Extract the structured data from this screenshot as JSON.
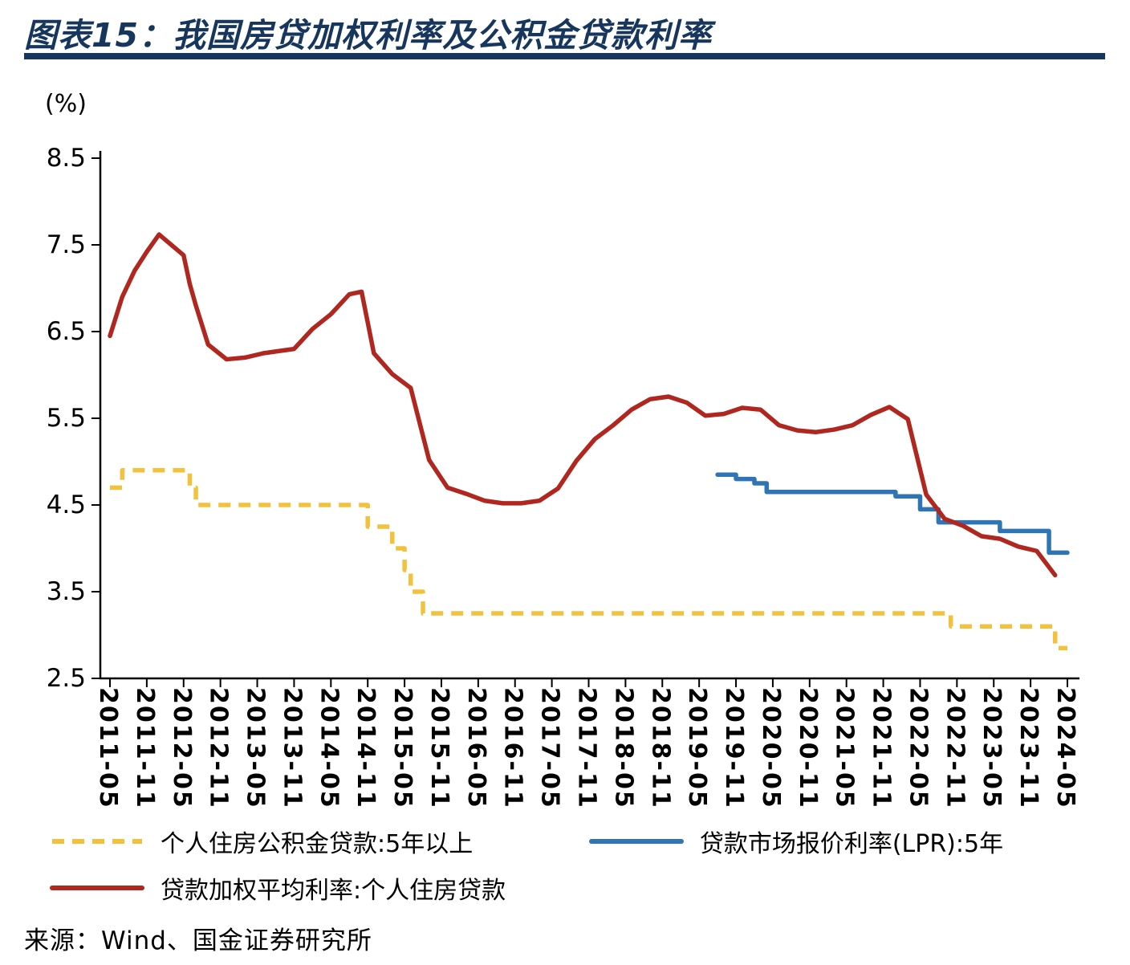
{
  "header": {
    "title": "图表15：我国房贷加权利率及公积金贷款利率"
  },
  "chart_data": {
    "type": "line",
    "title": "我国房贷加权利率及公积金贷款利率",
    "xlabel": "",
    "ylabel": "(%)",
    "unit_label": "(%)",
    "grid": false,
    "legend_position": "bottom",
    "ylim": [
      2.5,
      8.5
    ],
    "y_ticks": [
      8.5,
      7.5,
      6.5,
      5.5,
      4.5,
      3.5,
      2.5
    ],
    "x_tick_labels": [
      "2011-05",
      "2011-11",
      "2012-05",
      "2012-11",
      "2013-05",
      "2013-11",
      "2014-05",
      "2014-11",
      "2015-05",
      "2015-11",
      "2016-05",
      "2016-11",
      "2017-05",
      "2017-11",
      "2018-05",
      "2018-11",
      "2019-05",
      "2019-11",
      "2020-05",
      "2020-11",
      "2021-05",
      "2021-11",
      "2022-05",
      "2022-11",
      "2023-05",
      "2023-11",
      "2024-05"
    ],
    "x_months_range": [
      0,
      156
    ],
    "x_months_per_tick": 6,
    "series": [
      {
        "name": "个人住房公积金贷款:5年以上",
        "color": "#F3C13C",
        "style": "dashed",
        "line_type": "step",
        "end_month": 156,
        "points": [
          [
            0,
            4.7
          ],
          [
            2,
            4.9
          ],
          [
            13,
            4.7
          ],
          [
            14,
            4.5
          ],
          [
            42,
            4.25
          ],
          [
            46,
            4.0
          ],
          [
            48,
            3.75
          ],
          [
            49,
            3.5
          ],
          [
            51,
            3.25
          ],
          [
            137,
            3.1
          ],
          [
            154,
            2.85
          ]
        ]
      },
      {
        "name": "贷款市场报价利率(LPR):5年",
        "color": "#2F75B5",
        "style": "solid",
        "line_type": "step",
        "end_month": 156,
        "points": [
          [
            99,
            4.85
          ],
          [
            102,
            4.8
          ],
          [
            105,
            4.75
          ],
          [
            107,
            4.65
          ],
          [
            128,
            4.6
          ],
          [
            132,
            4.45
          ],
          [
            135,
            4.3
          ],
          [
            145,
            4.2
          ],
          [
            153,
            3.95
          ]
        ]
      },
      {
        "name": "贷款加权平均利率:个人住房贷款",
        "color": "#B0271F",
        "style": "solid",
        "line_type": "line",
        "points": [
          [
            0,
            6.45
          ],
          [
            2,
            6.9
          ],
          [
            4,
            7.2
          ],
          [
            6,
            7.42
          ],
          [
            8,
            7.62
          ],
          [
            10,
            7.5
          ],
          [
            12,
            7.38
          ],
          [
            13,
            7.05
          ],
          [
            14,
            6.8
          ],
          [
            16,
            6.35
          ],
          [
            19,
            6.18
          ],
          [
            22,
            6.2
          ],
          [
            25,
            6.25
          ],
          [
            28,
            6.28
          ],
          [
            30,
            6.3
          ],
          [
            33,
            6.53
          ],
          [
            36,
            6.7
          ],
          [
            39,
            6.93
          ],
          [
            41,
            6.96
          ],
          [
            43,
            6.25
          ],
          [
            46,
            6.01
          ],
          [
            49,
            5.85
          ],
          [
            52,
            5.02
          ],
          [
            55,
            4.7
          ],
          [
            58,
            4.63
          ],
          [
            61,
            4.55
          ],
          [
            64,
            4.52
          ],
          [
            67,
            4.52
          ],
          [
            70,
            4.55
          ],
          [
            73,
            4.69
          ],
          [
            76,
            5.01
          ],
          [
            79,
            5.26
          ],
          [
            82,
            5.42
          ],
          [
            85,
            5.6
          ],
          [
            88,
            5.72
          ],
          [
            91,
            5.75
          ],
          [
            94,
            5.68
          ],
          [
            97,
            5.53
          ],
          [
            100,
            5.55
          ],
          [
            103,
            5.62
          ],
          [
            106,
            5.6
          ],
          [
            109,
            5.42
          ],
          [
            112,
            5.36
          ],
          [
            115,
            5.34
          ],
          [
            118,
            5.37
          ],
          [
            121,
            5.42
          ],
          [
            124,
            5.54
          ],
          [
            127,
            5.63
          ],
          [
            130,
            5.49
          ],
          [
            133,
            4.62
          ],
          [
            136,
            4.34
          ],
          [
            139,
            4.26
          ],
          [
            142,
            4.14
          ],
          [
            145,
            4.11
          ],
          [
            148,
            4.02
          ],
          [
            151,
            3.97
          ],
          [
            154,
            3.69
          ]
        ]
      }
    ]
  },
  "legend": {
    "items": [
      {
        "label": "个人住房公积金贷款:5年以上",
        "color": "#F3C13C",
        "style": "dashed"
      },
      {
        "label": "贷款市场报价利率(LPR):5年",
        "color": "#2F75B5",
        "style": "solid"
      },
      {
        "label": "贷款加权平均利率:个人住房贷款",
        "color": "#B0271F",
        "style": "solid"
      }
    ]
  },
  "source": "来源：Wind、国金证券研究所"
}
